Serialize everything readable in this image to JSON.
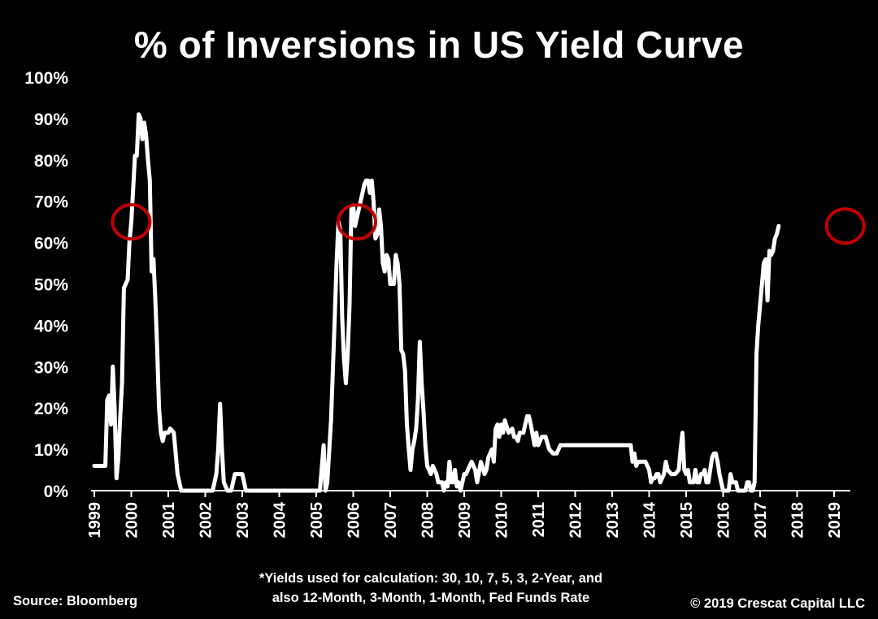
{
  "chart_data": {
    "type": "line",
    "title": "% of Inversions in US Yield Curve",
    "xlabel": "",
    "ylabel": "",
    "x_range": [
      1999.0,
      2019.33
    ],
    "ylim": [
      0,
      100
    ],
    "y_ticks": [
      "0%",
      "10%",
      "20%",
      "30%",
      "40%",
      "50%",
      "60%",
      "70%",
      "80%",
      "90%",
      "100%"
    ],
    "x_ticks": [
      "1999",
      "2000",
      "2001",
      "2002",
      "2003",
      "2004",
      "2005",
      "2006",
      "2007",
      "2008",
      "2009",
      "2010",
      "2011",
      "2012",
      "2013",
      "2014",
      "2015",
      "2016",
      "2017",
      "2018",
      "2019"
    ],
    "grid": false,
    "legend": "none",
    "line_color": "#ffffff",
    "highlight_color": "#c00000",
    "highlights": [
      {
        "x": 2000.0,
        "y": 65
      },
      {
        "x": 2006.1,
        "y": 65
      },
      {
        "x": 2019.3,
        "y": 64
      }
    ],
    "series": [
      {
        "values": [
          [
            1999.0,
            6
          ],
          [
            1999.2,
            6
          ],
          [
            1999.3,
            6
          ],
          [
            1999.35,
            22
          ],
          [
            1999.4,
            23
          ],
          [
            1999.45,
            16
          ],
          [
            1999.5,
            30
          ],
          [
            1999.55,
            20
          ],
          [
            1999.6,
            3
          ],
          [
            1999.65,
            8
          ],
          [
            1999.7,
            18
          ],
          [
            1999.75,
            26
          ],
          [
            1999.8,
            49
          ],
          [
            1999.85,
            50
          ],
          [
            1999.9,
            51
          ],
          [
            1999.95,
            60
          ],
          [
            2000.0,
            65
          ],
          [
            2000.05,
            73
          ],
          [
            2000.1,
            81
          ],
          [
            2000.15,
            81
          ],
          [
            2000.2,
            91
          ],
          [
            2000.25,
            90
          ],
          [
            2000.3,
            85
          ],
          [
            2000.35,
            89
          ],
          [
            2000.4,
            86
          ],
          [
            2000.45,
            80
          ],
          [
            2000.5,
            75
          ],
          [
            2000.55,
            53
          ],
          [
            2000.6,
            56
          ],
          [
            2000.65,
            46
          ],
          [
            2000.7,
            34
          ],
          [
            2000.75,
            20
          ],
          [
            2000.8,
            14
          ],
          [
            2000.85,
            12
          ],
          [
            2000.9,
            14
          ],
          [
            2001.0,
            14
          ],
          [
            2001.05,
            15
          ],
          [
            2001.15,
            14
          ],
          [
            2001.25,
            4
          ],
          [
            2001.35,
            0
          ],
          [
            2002.2,
            0
          ],
          [
            2002.3,
            4
          ],
          [
            2002.35,
            10
          ],
          [
            2002.4,
            21
          ],
          [
            2002.45,
            10
          ],
          [
            2002.5,
            2
          ],
          [
            2002.6,
            0
          ],
          [
            2002.7,
            0
          ],
          [
            2002.8,
            4
          ],
          [
            2002.9,
            4
          ],
          [
            2003.0,
            4
          ],
          [
            2003.1,
            0
          ],
          [
            2005.0,
            0
          ],
          [
            2005.1,
            0
          ],
          [
            2005.2,
            11
          ],
          [
            2005.25,
            0
          ],
          [
            2005.3,
            2
          ],
          [
            2005.4,
            17
          ],
          [
            2005.5,
            42
          ],
          [
            2005.55,
            55
          ],
          [
            2005.6,
            65
          ],
          [
            2005.65,
            63
          ],
          [
            2005.7,
            42
          ],
          [
            2005.75,
            32
          ],
          [
            2005.8,
            26
          ],
          [
            2005.85,
            33
          ],
          [
            2005.9,
            45
          ],
          [
            2005.95,
            68
          ],
          [
            2006.0,
            69
          ],
          [
            2006.05,
            64
          ],
          [
            2006.1,
            66
          ],
          [
            2006.2,
            70
          ],
          [
            2006.25,
            72
          ],
          [
            2006.3,
            74
          ],
          [
            2006.35,
            75
          ],
          [
            2006.4,
            75
          ],
          [
            2006.45,
            72
          ],
          [
            2006.5,
            75
          ],
          [
            2006.55,
            70
          ],
          [
            2006.6,
            61
          ],
          [
            2006.65,
            62
          ],
          [
            2006.7,
            68
          ],
          [
            2006.75,
            64
          ],
          [
            2006.8,
            55
          ],
          [
            2006.85,
            53
          ],
          [
            2006.9,
            57
          ],
          [
            2006.95,
            56
          ],
          [
            2007.0,
            50
          ],
          [
            2007.05,
            50
          ],
          [
            2007.1,
            50
          ],
          [
            2007.15,
            57
          ],
          [
            2007.2,
            55
          ],
          [
            2007.25,
            50
          ],
          [
            2007.3,
            34
          ],
          [
            2007.35,
            33
          ],
          [
            2007.4,
            29
          ],
          [
            2007.45,
            16
          ],
          [
            2007.5,
            10
          ],
          [
            2007.55,
            5
          ],
          [
            2007.6,
            10
          ],
          [
            2007.65,
            12
          ],
          [
            2007.7,
            15
          ],
          [
            2007.75,
            22
          ],
          [
            2007.8,
            36
          ],
          [
            2007.85,
            26
          ],
          [
            2007.9,
            19
          ],
          [
            2007.95,
            11
          ],
          [
            2008.0,
            6
          ],
          [
            2008.1,
            4
          ],
          [
            2008.15,
            6
          ],
          [
            2008.25,
            4
          ],
          [
            2008.3,
            2
          ],
          [
            2008.4,
            2
          ],
          [
            2008.45,
            0
          ],
          [
            2008.5,
            2
          ],
          [
            2008.55,
            1
          ],
          [
            2008.6,
            7
          ],
          [
            2008.65,
            2
          ],
          [
            2008.7,
            2
          ],
          [
            2008.75,
            5
          ],
          [
            2008.8,
            1
          ],
          [
            2008.85,
            2
          ],
          [
            2008.9,
            0
          ],
          [
            2009.0,
            4
          ],
          [
            2009.05,
            4
          ],
          [
            2009.1,
            5
          ],
          [
            2009.15,
            6
          ],
          [
            2009.2,
            7
          ],
          [
            2009.3,
            5
          ],
          [
            2009.35,
            2
          ],
          [
            2009.45,
            7
          ],
          [
            2009.55,
            4
          ],
          [
            2009.6,
            5
          ],
          [
            2009.65,
            8
          ],
          [
            2009.7,
            9
          ],
          [
            2009.75,
            10
          ],
          [
            2009.8,
            7
          ],
          [
            2009.85,
            15
          ],
          [
            2009.9,
            16
          ],
          [
            2009.95,
            13
          ],
          [
            2010.0,
            16
          ],
          [
            2010.05,
            14
          ],
          [
            2010.1,
            17
          ],
          [
            2010.2,
            14
          ],
          [
            2010.3,
            15
          ],
          [
            2010.35,
            13
          ],
          [
            2010.4,
            13
          ],
          [
            2010.45,
            12
          ],
          [
            2010.5,
            14
          ],
          [
            2010.55,
            14
          ],
          [
            2010.6,
            14
          ],
          [
            2010.7,
            18
          ],
          [
            2010.75,
            18
          ],
          [
            2010.8,
            16
          ],
          [
            2010.9,
            11
          ],
          [
            2010.95,
            14
          ],
          [
            2011.0,
            11
          ],
          [
            2011.1,
            13
          ],
          [
            2011.2,
            13
          ],
          [
            2011.3,
            10
          ],
          [
            2011.4,
            9
          ],
          [
            2011.5,
            9
          ],
          [
            2011.6,
            11
          ],
          [
            2011.7,
            11
          ],
          [
            2012.0,
            11
          ],
          [
            2012.5,
            11
          ],
          [
            2013.0,
            11
          ],
          [
            2013.4,
            11
          ],
          [
            2013.5,
            11
          ],
          [
            2013.55,
            7
          ],
          [
            2013.6,
            9
          ],
          [
            2013.65,
            6
          ],
          [
            2013.7,
            7
          ],
          [
            2013.8,
            7
          ],
          [
            2013.9,
            7
          ],
          [
            2014.0,
            5
          ],
          [
            2014.05,
            2
          ],
          [
            2014.1,
            3
          ],
          [
            2014.15,
            3
          ],
          [
            2014.2,
            4
          ],
          [
            2014.25,
            4
          ],
          [
            2014.3,
            2
          ],
          [
            2014.4,
            4
          ],
          [
            2014.45,
            7
          ],
          [
            2014.5,
            5
          ],
          [
            2014.6,
            4
          ],
          [
            2014.7,
            4
          ],
          [
            2014.8,
            5
          ],
          [
            2014.85,
            10
          ],
          [
            2014.9,
            14
          ],
          [
            2014.95,
            5
          ],
          [
            2015.0,
            4
          ],
          [
            2015.05,
            5
          ],
          [
            2015.1,
            2
          ],
          [
            2015.2,
            2
          ],
          [
            2015.25,
            5
          ],
          [
            2015.3,
            2
          ],
          [
            2015.35,
            2
          ],
          [
            2015.4,
            4
          ],
          [
            2015.45,
            4
          ],
          [
            2015.5,
            5
          ],
          [
            2015.55,
            2
          ],
          [
            2015.6,
            2
          ],
          [
            2015.7,
            8
          ],
          [
            2015.75,
            9
          ],
          [
            2015.8,
            9
          ],
          [
            2015.85,
            7
          ],
          [
            2015.9,
            4
          ],
          [
            2015.95,
            2
          ],
          [
            2016.0,
            0
          ],
          [
            2016.1,
            0
          ],
          [
            2016.15,
            0
          ],
          [
            2016.2,
            4
          ],
          [
            2016.25,
            2
          ],
          [
            2016.3,
            2
          ],
          [
            2016.35,
            2
          ],
          [
            2016.4,
            0
          ],
          [
            2016.5,
            0
          ],
          [
            2016.6,
            0
          ],
          [
            2016.65,
            2
          ],
          [
            2016.7,
            2
          ],
          [
            2016.75,
            0
          ],
          [
            2016.8,
            0
          ],
          [
            2016.85,
            2
          ],
          [
            2016.9,
            33
          ],
          [
            2016.95,
            40
          ],
          [
            2017.0,
            45
          ],
          [
            2017.05,
            50
          ],
          [
            2017.1,
            55
          ],
          [
            2017.15,
            56
          ],
          [
            2017.2,
            46
          ],
          [
            2017.25,
            58
          ],
          [
            2017.3,
            57
          ],
          [
            2017.35,
            58
          ],
          [
            2017.4,
            61
          ],
          [
            2017.45,
            62
          ],
          [
            2017.5,
            64
          ]
        ]
      }
    ]
  },
  "footnote": {
    "line1": "*Yields used for calculation: 30, 10, 7, 5, 3, 2-Year, and",
    "line2": "also 12-Month, 3-Month, 1-Month, Fed Funds Rate"
  },
  "source_label": "Source: Bloomberg",
  "copyright_label": "© 2019 Crescat Capital LLC"
}
